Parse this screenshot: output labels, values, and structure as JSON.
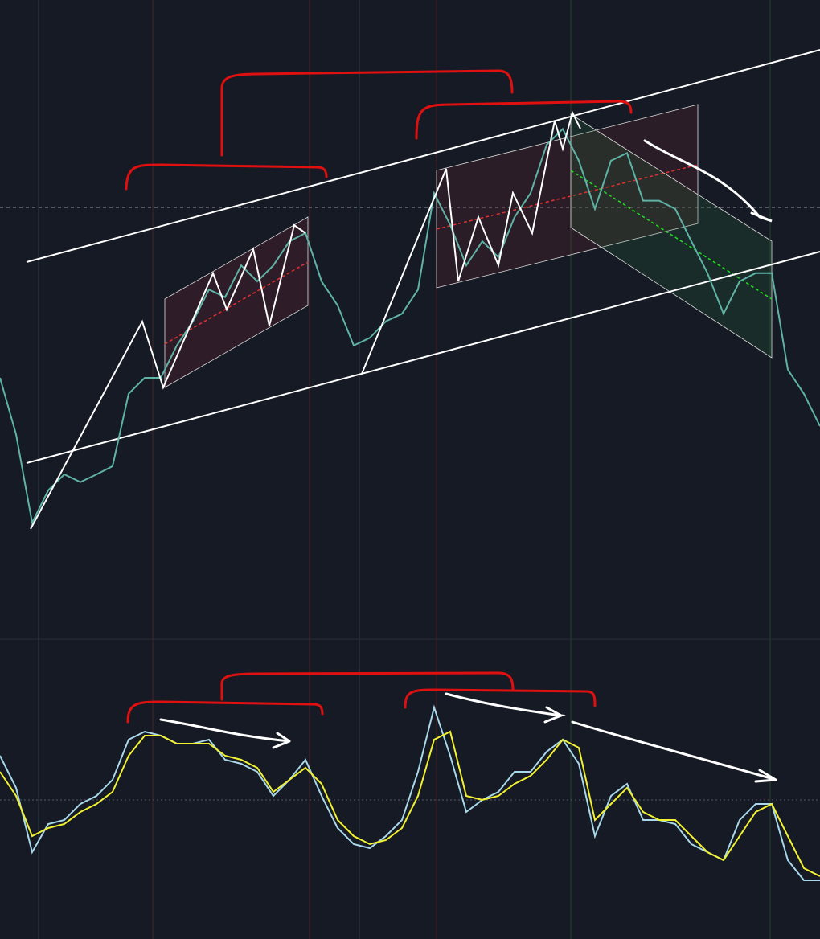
{
  "chart_data": [
    {
      "type": "line",
      "color": "#5fb3a6",
      "ylim": [
        0,
        100
      ],
      "values": [
        40.5,
        31.6,
        17.7,
        22.8,
        25.3,
        24.1,
        25.3,
        26.6,
        38.0,
        40.5,
        40.5,
        45.6,
        49.4,
        54.4,
        53.2,
        58.2,
        55.7,
        58.2,
        62.0,
        63.3,
        55.7,
        51.9,
        45.6,
        46.8,
        49.4,
        50.6,
        54.4,
        69.6,
        64.6,
        58.2,
        62.0,
        59.5,
        65.8,
        69.6,
        77.2,
        79.7,
        74.7,
        67.1,
        74.7,
        75.9,
        68.4,
        68.4,
        67.1,
        62.0,
        57.0,
        50.6,
        55.7,
        57.0,
        57.0,
        41.8,
        38.0,
        32.9
      ]
    },
    {
      "type": "line",
      "ylim": [
        -85,
        85
      ],
      "series": [
        {
          "color": "#a8d8ea",
          "values": [
            27.5,
            7.5,
            -32.5,
            -15,
            -12.5,
            -2.5,
            2.5,
            12.5,
            37.5,
            42.5,
            40,
            35,
            35,
            37.5,
            25,
            22.5,
            17.5,
            2.5,
            12.5,
            25,
            2.5,
            -17.5,
            -27.5,
            -30,
            -22.5,
            -12.5,
            17.5,
            57.5,
            27.5,
            -7.5,
            0,
            5,
            17.5,
            17.5,
            30,
            37.5,
            22.5,
            -22.5,
            2.5,
            10,
            -12.5,
            -12.5,
            -15,
            -27.5,
            -32.5,
            -37.5,
            -12.5,
            -2.5,
            -2.5,
            -37.5,
            -50,
            -50
          ]
        },
        {
          "color": "#f2f230",
          "values": [
            17.5,
            2.5,
            -22.5,
            -17.5,
            -15,
            -7.5,
            -2.5,
            5,
            27.5,
            40,
            40,
            35,
            35,
            35,
            27.5,
            25,
            20,
            5,
            12.5,
            20,
            10,
            -12.5,
            -22.5,
            -27.5,
            -25,
            -17.5,
            2.5,
            37.5,
            42.5,
            2.5,
            0,
            2.5,
            10,
            15,
            25,
            37.5,
            32.5,
            -12.5,
            -2.5,
            7.5,
            -7.5,
            -12.5,
            -12.5,
            -22.5,
            -32.5,
            -37.5,
            -22.5,
            -7.5,
            -2.5,
            -22.5,
            -42.5,
            -47.5
          ]
        }
      ]
    }
  ]
}
